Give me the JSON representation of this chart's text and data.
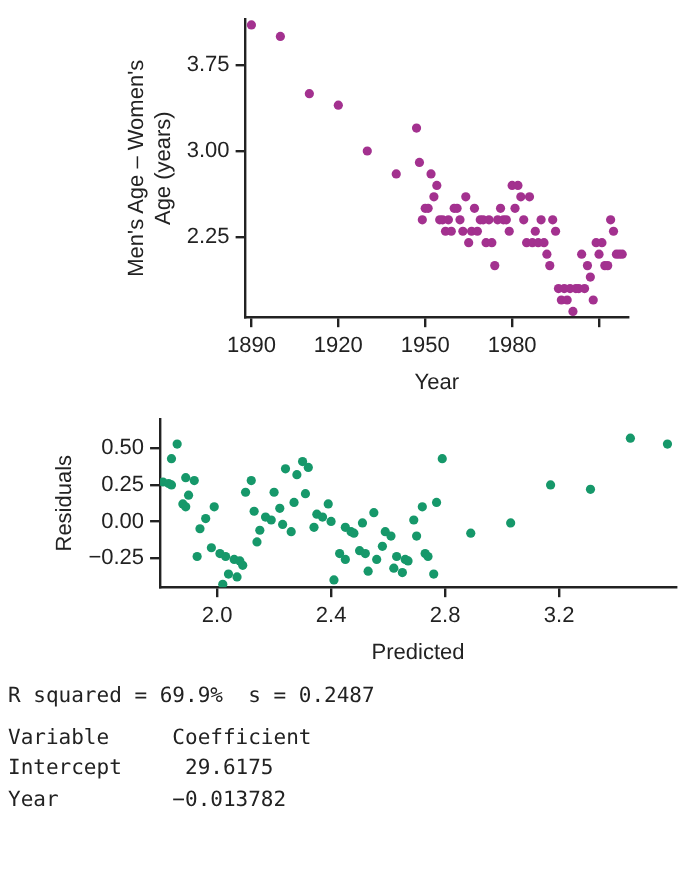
{
  "chart_data": [
    {
      "type": "scatter",
      "xlabel": "Year",
      "ylabel": "Men's Age – Women's Age (years)",
      "color": "#a3318f",
      "marker": "circle",
      "x": [
        1890,
        1900,
        1910,
        1920,
        1930,
        1940,
        1947,
        1948,
        1949,
        1950,
        1951,
        1952,
        1953,
        1954,
        1955,
        1956,
        1957,
        1958,
        1959,
        1960,
        1961,
        1962,
        1963,
        1964,
        1965,
        1966,
        1967,
        1968,
        1969,
        1970,
        1971,
        1972,
        1973,
        1974,
        1975,
        1976,
        1977,
        1978,
        1979,
        1980,
        1981,
        1982,
        1983,
        1984,
        1985,
        1986,
        1987,
        1988,
        1989,
        1990,
        1991,
        1992,
        1993,
        1994,
        1995,
        1996,
        1997,
        1998,
        1999,
        2000,
        2001,
        2002,
        2003,
        2004,
        2005,
        2006,
        2007,
        2008,
        2009,
        2010,
        2011,
        2012,
        2013,
        2014,
        2015,
        2016,
        2017,
        2018
      ],
      "values": [
        4.1,
        4.0,
        3.5,
        3.4,
        3.0,
        2.8,
        3.2,
        2.9,
        2.4,
        2.5,
        2.5,
        2.8,
        2.6,
        2.7,
        2.4,
        2.4,
        2.3,
        2.4,
        2.3,
        2.5,
        2.5,
        2.4,
        2.3,
        2.6,
        2.2,
        2.3,
        2.5,
        2.3,
        2.4,
        2.4,
        2.2,
        2.4,
        2.2,
        2.0,
        2.4,
        2.5,
        2.4,
        2.4,
        2.3,
        2.7,
        2.5,
        2.7,
        2.6,
        2.4,
        2.2,
        2.6,
        2.2,
        2.3,
        2.2,
        2.4,
        2.2,
        2.1,
        2.0,
        2.4,
        2.3,
        1.8,
        1.7,
        1.8,
        1.7,
        1.8,
        1.6,
        1.8,
        1.8,
        2.1,
        1.8,
        2.0,
        1.9,
        1.7,
        2.2,
        2.1,
        2.2,
        2.0,
        2.0,
        2.4,
        2.3,
        2.1,
        2.1,
        2.1
      ],
      "xlim": [
        1888,
        2020
      ],
      "xticks": [
        1890,
        1920,
        1950,
        1980,
        {
          "value": 2010,
          "label": null
        }
      ],
      "ylim": [
        1.55,
        4.15
      ],
      "yticks": [
        2.25,
        {
          "value": 3,
          "label": "3.00"
        },
        3.75
      ]
    },
    {
      "type": "scatter",
      "xlabel": "Predicted",
      "ylabel": "Residuals",
      "color": "#16986a",
      "marker": "circle",
      "x": [
        1.81,
        1.83,
        1.84,
        1.84,
        1.86,
        1.88,
        1.89,
        1.89,
        1.9,
        1.92,
        1.93,
        1.94,
        1.96,
        1.98,
        1.99,
        2.01,
        2.02,
        2.03,
        2.04,
        2.06,
        2.07,
        2.08,
        2.09,
        2.1,
        2.12,
        2.13,
        2.14,
        2.15,
        2.17,
        2.19,
        2.2,
        2.22,
        2.23,
        2.24,
        2.26,
        2.27,
        2.28,
        2.3,
        2.31,
        2.32,
        2.34,
        2.35,
        2.37,
        2.39,
        2.4,
        2.41,
        2.43,
        2.45,
        2.45,
        2.47,
        2.48,
        2.5,
        2.51,
        2.52,
        2.53,
        2.55,
        2.56,
        2.58,
        2.59,
        2.61,
        2.62,
        2.63,
        2.65,
        2.66,
        2.67,
        2.69,
        2.7,
        2.72,
        2.73,
        2.74,
        2.76,
        2.77,
        2.79,
        2.89,
        3.03,
        3.17,
        3.31,
        3.45,
        3.58
      ],
      "values": [
        0.27,
        0.26,
        0.25,
        0.43,
        0.53,
        0.12,
        0.1,
        0.3,
        0.18,
        0.28,
        -0.24,
        -0.05,
        0.02,
        -0.18,
        0.1,
        -0.22,
        -0.43,
        -0.24,
        -0.36,
        -0.26,
        -0.38,
        -0.27,
        -0.3,
        0.2,
        0.28,
        0.07,
        -0.14,
        -0.06,
        0.03,
        0.01,
        0.2,
        0.09,
        -0.02,
        0.36,
        -0.07,
        0.13,
        0.32,
        0.41,
        0.19,
        0.37,
        -0.04,
        0.05,
        0.03,
        0.12,
        0,
        -0.4,
        -0.22,
        -0.26,
        -0.04,
        -0.07,
        -0.08,
        -0.2,
        -0.01,
        -0.22,
        -0.34,
        0.06,
        -0.26,
        -0.17,
        -0.07,
        -0.1,
        -0.32,
        -0.24,
        -0.35,
        -0.26,
        -0.27,
        0.01,
        -0.1,
        0.1,
        -0.22,
        -0.24,
        -0.36,
        0.13,
        0.43,
        -0.08,
        -0.01,
        0.25,
        0.22,
        0.57,
        0.53
      ],
      "xlim": [
        1.8,
        3.61
      ],
      "xticks": [
        {
          "value": 2,
          "label": "2.0"
        },
        2.4,
        2.8,
        3.2
      ],
      "ylim": [
        -0.45,
        0.7
      ],
      "yticks": [
        {
          "value": -0.25,
          "label": "−0.25"
        },
        {
          "value": 0,
          "label": "0.00"
        },
        0.25,
        {
          "value": 0.5,
          "label": "0.50"
        }
      ],
      "annotations": [
        "R squared = 69.9%  s = 0.2487",
        "Variable     Coefficient",
        "Intercept     29.6175",
        "Year         −0.013782"
      ]
    }
  ]
}
